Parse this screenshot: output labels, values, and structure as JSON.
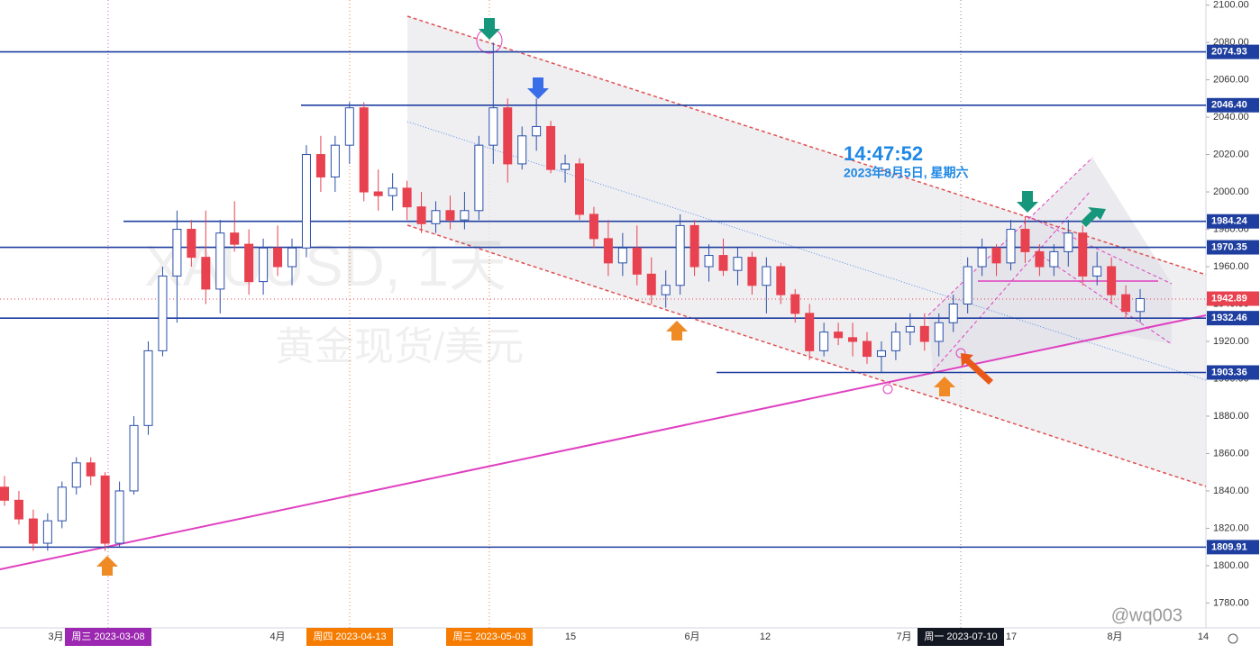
{
  "chart_data": {
    "type": "candlestick",
    "watermark_symbol": "XAUUSD, 1天",
    "watermark_name": "黄金现货/美元",
    "clock": "14:47:52",
    "clock_date": "2023年8月5日, 星期六",
    "credit": "@wq003",
    "up_color": "#2a4fa8",
    "down_color": "#e8414f",
    "level_color": "#1f3fa0",
    "ylim": [
      1766.7,
      2102.7
    ],
    "yticks": [
      {
        "value": 2100,
        "label": "2100.00"
      },
      {
        "value": 2080,
        "label": "2080.00"
      },
      {
        "value": 2060,
        "label": "2060.00"
      },
      {
        "value": 2040,
        "label": "2040.00"
      },
      {
        "value": 2020,
        "label": "2020.00"
      },
      {
        "value": 2000,
        "label": "2000.00"
      },
      {
        "value": 1980,
        "label": "1980.00"
      },
      {
        "value": 1960,
        "label": "1960.00"
      },
      {
        "value": 1940,
        "label": "1940.00"
      },
      {
        "value": 1920,
        "label": "1920.00"
      },
      {
        "value": 1900,
        "label": "1900.00"
      },
      {
        "value": 1880,
        "label": "1880.00"
      },
      {
        "value": 1860,
        "label": "1860.00"
      },
      {
        "value": 1840,
        "label": "1840.00"
      },
      {
        "value": 1820,
        "label": "1820.00"
      },
      {
        "value": 1800,
        "label": "1800.00"
      },
      {
        "value": 1780,
        "label": "1780.00"
      }
    ],
    "levels": [
      {
        "value": 2074.93,
        "label": "2074.93"
      },
      {
        "value": 2046.4,
        "label": "2046.40"
      },
      {
        "value": 1984.24,
        "label": "1984.24"
      },
      {
        "value": 1970.35,
        "label": "1970.35"
      },
      {
        "value": 1932.46,
        "label": "1932.46"
      },
      {
        "value": 1903.36,
        "label": "1903.36"
      },
      {
        "value": 1809.91,
        "label": "1809.91"
      }
    ],
    "last_price": {
      "value": 1942.89,
      "label": "1942.89",
      "color": "#e8414f"
    },
    "x_labels": [
      "3月",
      "4月",
      "15",
      "6月",
      "12",
      "7月",
      "17",
      "8月",
      "14"
    ],
    "date_badges": [
      {
        "label": "周三 2023-03-08",
        "color": "#9c27b0"
      },
      {
        "label": "周四 2023-04-13",
        "color": "#f57c00"
      },
      {
        "label": "周三 2023-05-03",
        "color": "#f57c00"
      },
      {
        "label": "周一 2023-07-10",
        "color": "#131722"
      }
    ],
    "ohlc": [
      [
        1842,
        1848,
        1832,
        1835
      ],
      [
        1835,
        1840,
        1822,
        1825
      ],
      [
        1825,
        1830,
        1808,
        1812
      ],
      [
        1812,
        1828,
        1808,
        1824
      ],
      [
        1824,
        1845,
        1820,
        1842
      ],
      [
        1842,
        1858,
        1838,
        1855
      ],
      [
        1855,
        1858,
        1843,
        1848
      ],
      [
        1848,
        1850,
        1808,
        1812
      ],
      [
        1812,
        1845,
        1810,
        1840
      ],
      [
        1840,
        1880,
        1838,
        1875
      ],
      [
        1875,
        1920,
        1870,
        1915
      ],
      [
        1915,
        1960,
        1912,
        1955
      ],
      [
        1955,
        1990,
        1930,
        1980
      ],
      [
        1980,
        1985,
        1960,
        1965
      ],
      [
        1965,
        1990,
        1940,
        1948
      ],
      [
        1948,
        1985,
        1935,
        1978
      ],
      [
        1978,
        1995,
        1968,
        1972
      ],
      [
        1972,
        1980,
        1945,
        1952
      ],
      [
        1952,
        1975,
        1945,
        1970
      ],
      [
        1970,
        1982,
        1955,
        1960
      ],
      [
        1960,
        1975,
        1950,
        1970
      ],
      [
        1970,
        2025,
        1965,
        2020
      ],
      [
        2020,
        2030,
        2000,
        2008
      ],
      [
        2008,
        2030,
        2000,
        2025
      ],
      [
        2025,
        2048,
        2015,
        2045
      ],
      [
        2045,
        2048,
        1995,
        2000
      ],
      [
        2000,
        2012,
        1990,
        1998
      ],
      [
        1998,
        2010,
        1990,
        2002
      ],
      [
        2002,
        2006,
        1985,
        1992
      ],
      [
        1992,
        2000,
        1978,
        1983
      ],
      [
        1983,
        1995,
        1978,
        1990
      ],
      [
        1990,
        1998,
        1980,
        1985
      ],
      [
        1985,
        2000,
        1980,
        1990
      ],
      [
        1990,
        2030,
        1985,
        2025
      ],
      [
        2025,
        2080,
        2015,
        2045
      ],
      [
        2045,
        2050,
        2005,
        2015
      ],
      [
        2015,
        2035,
        2012,
        2030
      ],
      [
        2030,
        2050,
        2022,
        2035
      ],
      [
        2035,
        2038,
        2010,
        2012
      ],
      [
        2012,
        2020,
        2005,
        2015
      ],
      [
        2015,
        2018,
        1985,
        1988
      ],
      [
        1988,
        1992,
        1970,
        1975
      ],
      [
        1975,
        1985,
        1955,
        1962
      ],
      [
        1962,
        1978,
        1955,
        1970
      ],
      [
        1970,
        1982,
        1950,
        1956
      ],
      [
        1956,
        1965,
        1940,
        1945
      ],
      [
        1945,
        1958,
        1938,
        1950
      ],
      [
        1950,
        1988,
        1945,
        1982
      ],
      [
        1982,
        1985,
        1955,
        1960
      ],
      [
        1960,
        1972,
        1952,
        1966
      ],
      [
        1966,
        1975,
        1955,
        1958
      ],
      [
        1958,
        1970,
        1950,
        1965
      ],
      [
        1965,
        1968,
        1945,
        1950
      ],
      [
        1950,
        1965,
        1935,
        1960
      ],
      [
        1960,
        1962,
        1940,
        1945
      ],
      [
        1945,
        1948,
        1930,
        1935
      ],
      [
        1935,
        1940,
        1910,
        1915
      ],
      [
        1915,
        1930,
        1912,
        1925
      ],
      [
        1925,
        1930,
        1918,
        1922
      ],
      [
        1922,
        1930,
        1912,
        1920
      ],
      [
        1920,
        1925,
        1908,
        1912
      ],
      [
        1912,
        1920,
        1903,
        1915
      ],
      [
        1915,
        1930,
        1910,
        1925
      ],
      [
        1925,
        1935,
        1918,
        1928
      ],
      [
        1928,
        1935,
        1915,
        1920
      ],
      [
        1920,
        1935,
        1912,
        1930
      ],
      [
        1930,
        1945,
        1925,
        1940
      ],
      [
        1940,
        1965,
        1935,
        1960
      ],
      [
        1960,
        1975,
        1955,
        1970
      ],
      [
        1970,
        1972,
        1955,
        1962
      ],
      [
        1962,
        1985,
        1958,
        1980
      ],
      [
        1980,
        1987,
        1962,
        1968
      ],
      [
        1968,
        1972,
        1955,
        1960
      ],
      [
        1960,
        1972,
        1955,
        1968
      ],
      [
        1968,
        1985,
        1960,
        1978
      ],
      [
        1978,
        1982,
        1950,
        1955
      ],
      [
        1955,
        1968,
        1950,
        1960
      ],
      [
        1960,
        1965,
        1940,
        1945
      ],
      [
        1945,
        1950,
        1932,
        1936
      ],
      [
        1936,
        1948,
        1930,
        1942.89
      ]
    ]
  }
}
